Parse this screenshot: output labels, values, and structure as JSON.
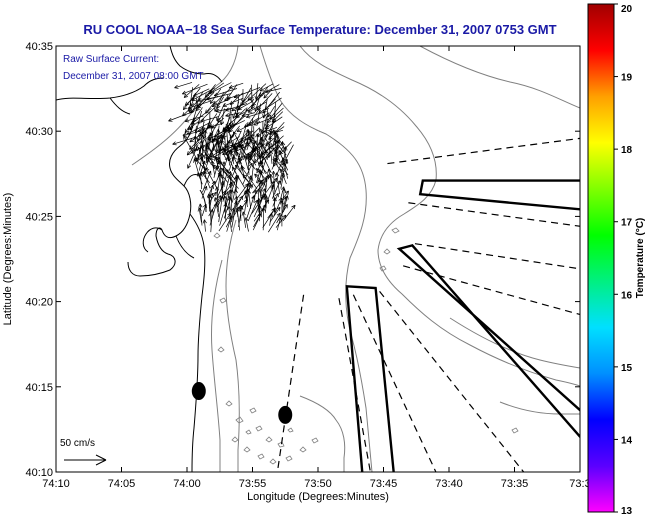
{
  "chart_data": {
    "type": "map",
    "title": "RU COOL  NOAA−18  Sea Surface Temperature:  December 31, 2007 0753 GMT",
    "subtitle_lines": [
      "Raw Surface Current:",
      "December 31, 2007 08:00 GMT"
    ],
    "xlabel": "Longitude (Degrees:Minutes)",
    "ylabel": "Latitude (Degrees:Minutes)",
    "xlim_minutes_west": [
      250,
      210
    ],
    "ylim_minutes_north": [
      2410,
      2435
    ],
    "x_ticks": [
      {
        "value": 250,
        "label": "74:10"
      },
      {
        "value": 245,
        "label": "74:05"
      },
      {
        "value": 240,
        "label": "74:00"
      },
      {
        "value": 235,
        "label": "73:55"
      },
      {
        "value": 230,
        "label": "73:50"
      },
      {
        "value": 225,
        "label": "73:45"
      },
      {
        "value": 220,
        "label": "73:40"
      },
      {
        "value": 215,
        "label": "73:35"
      },
      {
        "value": 210,
        "label": "73:3"
      }
    ],
    "y_ticks": [
      {
        "value": 2435,
        "label": "40:35"
      },
      {
        "value": 2430,
        "label": "40:30"
      },
      {
        "value": 2425,
        "label": "40:25"
      },
      {
        "value": 2420,
        "label": "40:20"
      },
      {
        "value": 2415,
        "label": "40:15"
      },
      {
        "value": 2410,
        "label": "40:10"
      }
    ],
    "colorbar": {
      "label": "Temperature (°C)",
      "min": 13,
      "max": 20,
      "tick_values": [
        13,
        14,
        15,
        16,
        17,
        18,
        19,
        20
      ],
      "tick_labels": [
        "13",
        "14",
        "15",
        "16",
        "17",
        "18",
        "19",
        "20"
      ],
      "colors": [
        "#ff00ff",
        "#5a00ff",
        "#0000ff",
        "#0090ff",
        "#00e0ff",
        "#00f080",
        "#00ff00",
        "#80ff00",
        "#ffff00",
        "#ffa000",
        "#ff0000",
        "#a00000"
      ]
    },
    "scale_vector": {
      "label": "50 cm/s"
    },
    "markers": [
      {
        "lon_min_w": 239.1,
        "lat_min_n": 2414.75
      },
      {
        "lon_min_w": 232.5,
        "lat_min_n": 2413.35
      }
    ],
    "current_vectors": {
      "region_lon_min_w": [
        231.5,
        239.5
      ],
      "region_lat_min_n": [
        2424.0,
        2432.8
      ],
      "color": "#000000"
    },
    "outlined_polygons": [
      [
        [
          222.2,
          2426.3
        ],
        [
          222.0,
          2427.1
        ],
        [
          209.8,
          2427.1
        ],
        [
          209.8,
          2425.4
        ]
      ],
      [
        [
          227.8,
          2420.9
        ],
        [
          225.6,
          2420.8
        ],
        [
          224.2,
          2409.8
        ],
        [
          226.6,
          2409.8
        ]
      ],
      [
        [
          222.8,
          2423.3
        ],
        [
          223.8,
          2423.1
        ],
        [
          209.8,
          2413.5
        ],
        [
          209.8,
          2411.9
        ]
      ]
    ],
    "dashed_lines": [
      [
        [
          224.7,
          2428.1
        ],
        [
          209.8,
          2429.6
        ]
      ],
      [
        [
          223.1,
          2425.8
        ],
        [
          209.8,
          2424.4
        ]
      ],
      [
        [
          222.6,
          2423.4
        ],
        [
          209.8,
          2421.9
        ]
      ],
      [
        [
          223.5,
          2422.1
        ],
        [
          209.8,
          2419.2
        ]
      ],
      [
        [
          225.3,
          2420.6
        ],
        [
          214.3,
          2410.0
        ]
      ],
      [
        [
          227.3,
          2420.4
        ],
        [
          221.0,
          2410.0
        ]
      ],
      [
        [
          228.4,
          2420.2
        ],
        [
          226.0,
          2410.0
        ]
      ],
      [
        [
          231.1,
          2420.4
        ],
        [
          233.1,
          2410.0
        ]
      ]
    ],
    "coastline_color": "#000000",
    "bathymetry_color": "#808080"
  }
}
